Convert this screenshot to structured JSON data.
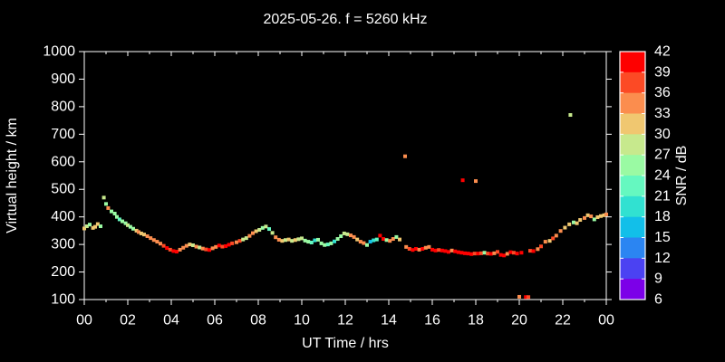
{
  "title": "2025-05-26. f = 5260 kHz",
  "colors": {
    "background": "#000000",
    "foreground": "#ffffff"
  },
  "chart_data": {
    "type": "scatter",
    "title": "2025-05-26. f = 5260 kHz",
    "xlabel": "UT Time / hrs",
    "ylabel": "Virtual height / km",
    "xlim": [
      0,
      24
    ],
    "ylim": [
      100,
      1000
    ],
    "grid": false,
    "x_tick_hours": [
      0,
      2,
      4,
      6,
      8,
      10,
      12,
      14,
      16,
      18,
      20,
      22,
      24
    ],
    "x_tick_labels": [
      "00",
      "02",
      "04",
      "06",
      "08",
      "10",
      "12",
      "14",
      "16",
      "18",
      "20",
      "22",
      "00"
    ],
    "x_minor_step_hours": 1,
    "y_ticks": [
      100,
      200,
      300,
      400,
      500,
      600,
      700,
      800,
      900,
      1000
    ],
    "marker": "square",
    "marker_size_px": 4,
    "colorbar": {
      "label": "SNR / dB",
      "min": 6,
      "max": 42,
      "step": 3,
      "tick_labels_top_to_bottom": [
        "42",
        "39",
        "36",
        "33",
        "30",
        "27",
        "24",
        "21",
        "18",
        "15",
        "12",
        "9",
        "6"
      ],
      "segment_colors_low_to_high": [
        "#7c00e8",
        "#4b42f2",
        "#2b85f2",
        "#12bfe9",
        "#31e1d1",
        "#65f8c0",
        "#9afaa3",
        "#c7e98d",
        "#f0c770",
        "#fb8d4e",
        "#fc4a25",
        "#fe0000"
      ]
    },
    "points_t_h_snr": [
      [
        0.0,
        358,
        31
      ],
      [
        0.12,
        366,
        28
      ],
      [
        0.25,
        372,
        25
      ],
      [
        0.4,
        360,
        31
      ],
      [
        0.5,
        364,
        31
      ],
      [
        0.62,
        374,
        31
      ],
      [
        0.75,
        366,
        25
      ],
      [
        0.9,
        470,
        28
      ],
      [
        1.0,
        447,
        25
      ],
      [
        1.1,
        432,
        34
      ],
      [
        1.25,
        420,
        25
      ],
      [
        1.4,
        412,
        25
      ],
      [
        1.5,
        400,
        25
      ],
      [
        1.62,
        391,
        22
      ],
      [
        1.75,
        384,
        25
      ],
      [
        1.9,
        377,
        25
      ],
      [
        2.0,
        370,
        28
      ],
      [
        2.12,
        364,
        25
      ],
      [
        2.25,
        357,
        25
      ],
      [
        2.4,
        350,
        31
      ],
      [
        2.5,
        345,
        34
      ],
      [
        2.62,
        340,
        31
      ],
      [
        2.75,
        336,
        31
      ],
      [
        2.9,
        330,
        34
      ],
      [
        3.05,
        323,
        34
      ],
      [
        3.2,
        316,
        34
      ],
      [
        3.35,
        310,
        34
      ],
      [
        3.5,
        303,
        34
      ],
      [
        3.65,
        295,
        37
      ],
      [
        3.8,
        287,
        40
      ],
      [
        3.95,
        281,
        37
      ],
      [
        4.1,
        276,
        40
      ],
      [
        4.25,
        274,
        40
      ],
      [
        4.4,
        281,
        34
      ],
      [
        4.55,
        288,
        34
      ],
      [
        4.7,
        295,
        34
      ],
      [
        4.85,
        300,
        31
      ],
      [
        5.0,
        297,
        28
      ],
      [
        5.15,
        292,
        34
      ],
      [
        5.3,
        289,
        28
      ],
      [
        5.45,
        285,
        34
      ],
      [
        5.6,
        282,
        37
      ],
      [
        5.75,
        280,
        40
      ],
      [
        5.9,
        286,
        34
      ],
      [
        6.05,
        291,
        34
      ],
      [
        6.2,
        296,
        40
      ],
      [
        6.35,
        292,
        37
      ],
      [
        6.5,
        294,
        40
      ],
      [
        6.65,
        299,
        40
      ],
      [
        6.8,
        304,
        37
      ],
      [
        7.0,
        308,
        34
      ],
      [
        7.15,
        313,
        37
      ],
      [
        7.3,
        318,
        28
      ],
      [
        7.45,
        323,
        28
      ],
      [
        7.6,
        331,
        34
      ],
      [
        7.75,
        341,
        34
      ],
      [
        7.9,
        348,
        31
      ],
      [
        8.05,
        353,
        28
      ],
      [
        8.2,
        360,
        25
      ],
      [
        8.35,
        365,
        28
      ],
      [
        8.5,
        356,
        22
      ],
      [
        8.65,
        342,
        28
      ],
      [
        8.8,
        326,
        34
      ],
      [
        8.95,
        317,
        34
      ],
      [
        9.1,
        313,
        31
      ],
      [
        9.25,
        316,
        28
      ],
      [
        9.4,
        318,
        31
      ],
      [
        9.55,
        313,
        28
      ],
      [
        9.7,
        316,
        31
      ],
      [
        9.85,
        319,
        28
      ],
      [
        10.0,
        322,
        28
      ],
      [
        10.15,
        314,
        25
      ],
      [
        10.3,
        310,
        25
      ],
      [
        10.45,
        307,
        22
      ],
      [
        10.6,
        315,
        19
      ],
      [
        10.75,
        317,
        25
      ],
      [
        10.9,
        304,
        25
      ],
      [
        11.05,
        298,
        25
      ],
      [
        11.2,
        300,
        22
      ],
      [
        11.35,
        304,
        25
      ],
      [
        11.5,
        311,
        19
      ],
      [
        11.65,
        320,
        25
      ],
      [
        11.8,
        330,
        25
      ],
      [
        11.95,
        340,
        28
      ],
      [
        12.1,
        337,
        28
      ],
      [
        12.25,
        333,
        34
      ],
      [
        12.4,
        327,
        34
      ],
      [
        12.55,
        318,
        31
      ],
      [
        12.7,
        310,
        34
      ],
      [
        12.85,
        305,
        34
      ],
      [
        13.0,
        298,
        25
      ],
      [
        13.15,
        310,
        16
      ],
      [
        13.3,
        315,
        19
      ],
      [
        13.45,
        318,
        22
      ],
      [
        13.6,
        332,
        40
      ],
      [
        13.75,
        320,
        40
      ],
      [
        13.9,
        316,
        25
      ],
      [
        14.05,
        313,
        34
      ],
      [
        14.2,
        320,
        34
      ],
      [
        14.35,
        327,
        25
      ],
      [
        14.5,
        318,
        31
      ],
      [
        14.75,
        620,
        34
      ],
      [
        14.8,
        291,
        34
      ],
      [
        14.95,
        284,
        37
      ],
      [
        15.1,
        280,
        40
      ],
      [
        15.25,
        284,
        40
      ],
      [
        15.4,
        281,
        34
      ],
      [
        15.55,
        284,
        40
      ],
      [
        15.7,
        288,
        34
      ],
      [
        15.85,
        291,
        34
      ],
      [
        16.0,
        281,
        40
      ],
      [
        16.15,
        278,
        40
      ],
      [
        16.3,
        280,
        37
      ],
      [
        16.45,
        278,
        40
      ],
      [
        16.6,
        276,
        40
      ],
      [
        16.75,
        273,
        40
      ],
      [
        16.9,
        278,
        34
      ],
      [
        17.05,
        275,
        40
      ],
      [
        17.2,
        272,
        40
      ],
      [
        17.35,
        270,
        40
      ],
      [
        17.4,
        533,
        40
      ],
      [
        17.5,
        268,
        40
      ],
      [
        17.65,
        267,
        40
      ],
      [
        17.8,
        265,
        40
      ],
      [
        17.95,
        267,
        37
      ],
      [
        18.0,
        530,
        34
      ],
      [
        18.1,
        267,
        40
      ],
      [
        18.25,
        268,
        37
      ],
      [
        18.4,
        270,
        25
      ],
      [
        18.55,
        267,
        37
      ],
      [
        18.7,
        266,
        40
      ],
      [
        18.85,
        268,
        34
      ],
      [
        19.0,
        273,
        37
      ],
      [
        19.15,
        262,
        40
      ],
      [
        19.3,
        260,
        40
      ],
      [
        19.45,
        266,
        34
      ],
      [
        19.6,
        272,
        40
      ],
      [
        19.75,
        270,
        37
      ],
      [
        19.9,
        267,
        40
      ],
      [
        20.0,
        110,
        34
      ],
      [
        20.1,
        270,
        40
      ],
      [
        20.3,
        109,
        40
      ],
      [
        20.42,
        109,
        37
      ],
      [
        20.5,
        277,
        37
      ],
      [
        20.65,
        276,
        40
      ],
      [
        20.85,
        283,
        34
      ],
      [
        21.0,
        293,
        37
      ],
      [
        21.2,
        310,
        34
      ],
      [
        21.4,
        313,
        31
      ],
      [
        21.55,
        322,
        37
      ],
      [
        21.7,
        332,
        34
      ],
      [
        21.9,
        349,
        34
      ],
      [
        22.1,
        361,
        31
      ],
      [
        22.3,
        373,
        31
      ],
      [
        22.35,
        770,
        28
      ],
      [
        22.5,
        380,
        25
      ],
      [
        22.65,
        377,
        31
      ],
      [
        22.8,
        389,
        31
      ],
      [
        23.0,
        396,
        34
      ],
      [
        23.15,
        406,
        31
      ],
      [
        23.3,
        402,
        34
      ],
      [
        23.45,
        391,
        25
      ],
      [
        23.6,
        399,
        31
      ],
      [
        23.75,
        403,
        31
      ],
      [
        23.9,
        406,
        31
      ],
      [
        24.0,
        409,
        34
      ]
    ]
  }
}
